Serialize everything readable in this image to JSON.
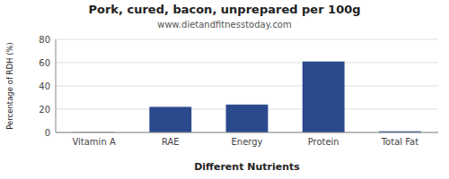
{
  "chart_data": {
    "type": "bar",
    "title": "Pork, cured, bacon, unprepared per 100g",
    "subtitle": "www.dietandfitnesstoday.com",
    "xlabel": "Different Nutrients",
    "ylabel": "Percentage of RDH (%)",
    "categories": [
      "Vitamin A",
      "RAE",
      "Energy",
      "Protein",
      "Total Fat"
    ],
    "values": [
      0.3,
      22,
      24,
      61,
      1
    ],
    "color": "#2B4A8E",
    "ylim": [
      0,
      80
    ],
    "yticks": [
      0,
      20,
      40,
      60,
      80
    ],
    "grid": true
  }
}
